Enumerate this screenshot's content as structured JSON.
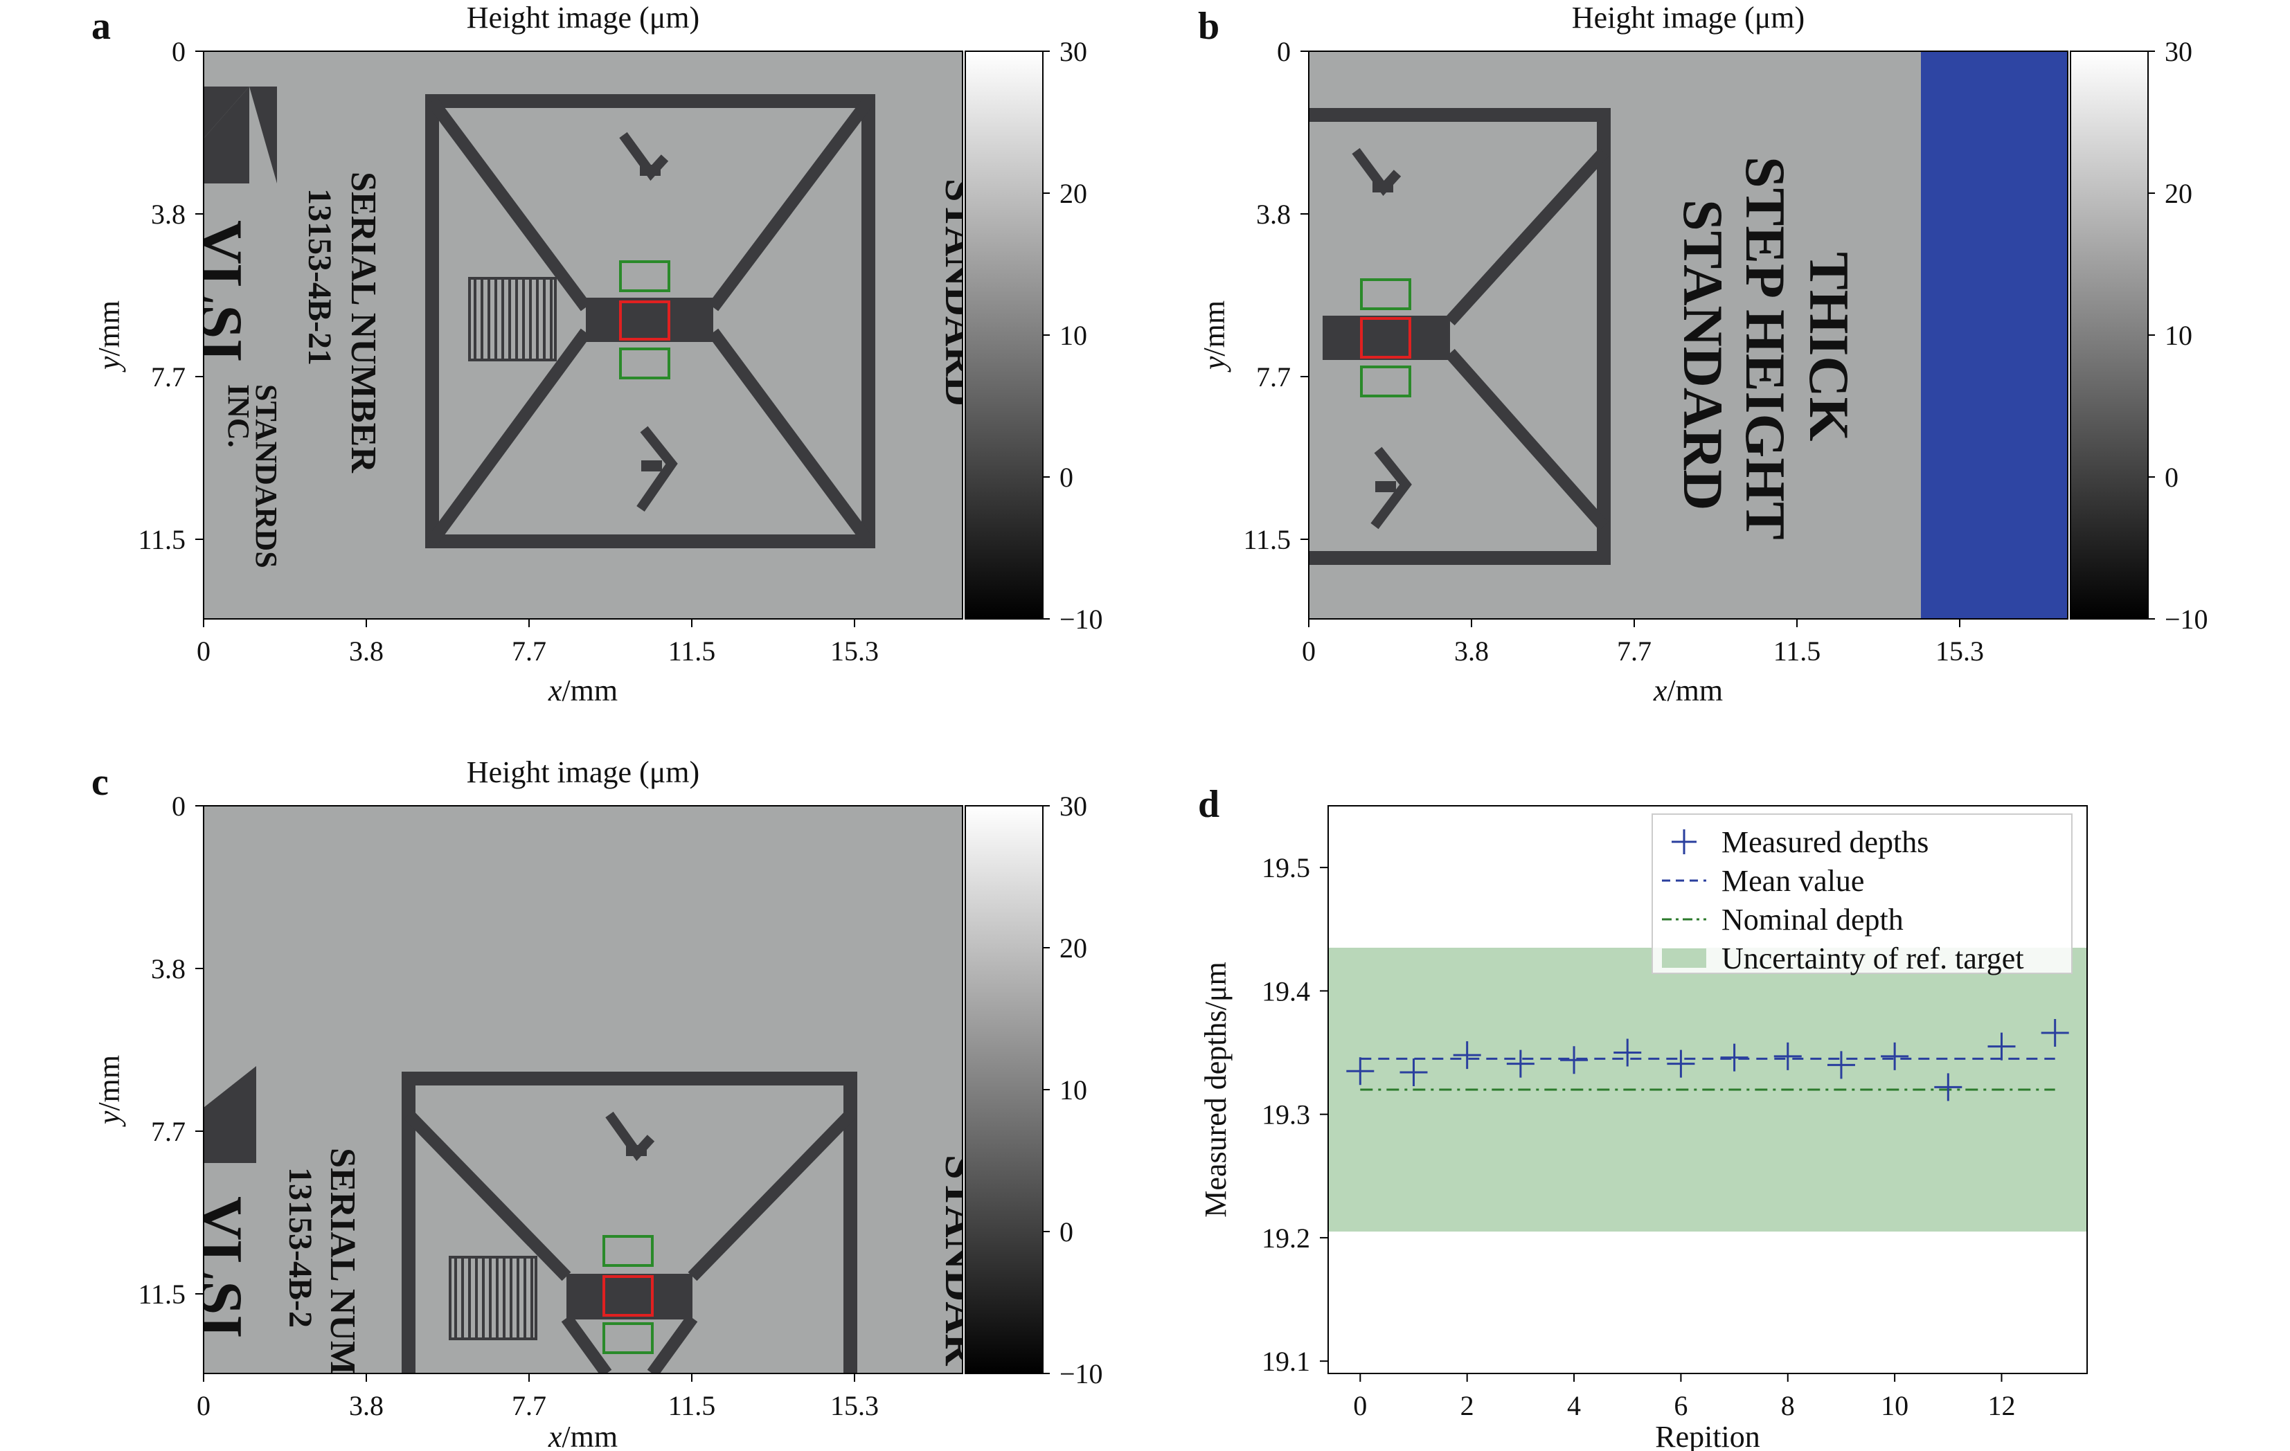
{
  "panels": [
    {
      "letter": "a",
      "title": "Height image (μm)",
      "xlabel_var": "x",
      "xlabel_unit": "/mm",
      "ylabel_var": "y",
      "ylabel_unit": "/mm",
      "xticks": [
        "0",
        "3.8",
        "7.7",
        "11.5",
        "15.3"
      ],
      "yticks": [
        "0",
        "3.8",
        "7.7",
        "11.5"
      ],
      "colorbar_ticks": [
        "30",
        "20",
        "10",
        "0",
        "−10"
      ],
      "sample_text": {
        "serial_label": "SERIAL NUMBER",
        "serial_value": "13153-4B-21",
        "maker_line1": "STANDARDS",
        "maker_line2": "INC.",
        "edge_word": "STANDARD"
      }
    },
    {
      "letter": "b",
      "title": "Height image (μm)",
      "xlabel_var": "x",
      "xlabel_unit": "/mm",
      "ylabel_var": "y",
      "ylabel_unit": "/mm",
      "xticks": [
        "0",
        "3.8",
        "7.7",
        "11.5",
        "15.3"
      ],
      "yticks": [
        "0",
        "3.8",
        "7.7",
        "11.5"
      ],
      "colorbar_ticks": [
        "30",
        "20",
        "10",
        "0",
        "−10"
      ],
      "sample_text": {
        "line1": "THICK",
        "line2": "STEP HEIGHT",
        "line3": "STANDARD"
      }
    },
    {
      "letter": "c",
      "title": "Height image (μm)",
      "xlabel_var": "x",
      "xlabel_unit": "/mm",
      "ylabel_var": "y",
      "ylabel_unit": "/mm",
      "xticks": [
        "0",
        "3.8",
        "7.7",
        "11.5",
        "15.3"
      ],
      "yticks": [
        "0",
        "3.8",
        "7.7",
        "11.5"
      ],
      "colorbar_ticks": [
        "30",
        "20",
        "10",
        "0",
        "−10"
      ],
      "sample_text": {
        "serial_label": "SERIAL NUM",
        "serial_value": "13153-4B-2",
        "edge_word": "STANDAR"
      }
    }
  ],
  "colors": {
    "sample_gray": "#a6a8a8",
    "pattern_dark": "#3b3b3e",
    "blue_region": "#2e45a3",
    "measured": "#2a3f9e",
    "mean": "#2a3f9e",
    "nominal": "#2c7a2c",
    "uncertainty": "#b9d7b9",
    "roi_red": "#e02020",
    "roi_green": "#2a8a2a"
  },
  "chart_data": {
    "letter": "d",
    "type": "scatter",
    "xlabel": "Repition",
    "ylabel": "Measured depths/μm",
    "xlim": [
      -0.6,
      13.6
    ],
    "ylim": [
      19.09,
      19.55
    ],
    "xticks": [
      0,
      2,
      4,
      6,
      8,
      10,
      12
    ],
    "yticks": [
      19.1,
      19.2,
      19.3,
      19.4,
      19.5
    ],
    "x": [
      0,
      1,
      2,
      3,
      4,
      5,
      6,
      7,
      8,
      9,
      10,
      11,
      12,
      13
    ],
    "series": [
      {
        "name": "Measured depths",
        "marker": "+",
        "values": [
          19.335,
          19.334,
          19.348,
          19.341,
          19.344,
          19.35,
          19.341,
          19.346,
          19.347,
          19.34,
          19.347,
          19.322,
          19.355,
          19.366
        ]
      }
    ],
    "mean_value": {
      "name": "Mean value",
      "y": 19.345
    },
    "nominal_depth": {
      "name": "Nominal depth",
      "y": 19.32
    },
    "uncertainty_band": {
      "name": "Uncertainty of ref. target",
      "y": [
        19.205,
        19.435
      ]
    },
    "legend": "top-right",
    "grid": false
  }
}
